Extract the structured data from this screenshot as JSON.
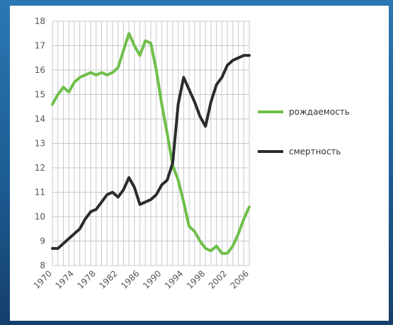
{
  "chart_data": {
    "type": "line",
    "title": "",
    "xlabel": "",
    "ylabel": "",
    "ylim": [
      8,
      18
    ],
    "xlim": [
      1970,
      2006
    ],
    "grid": true,
    "legend_position": "right",
    "y_ticks": [
      "8",
      "9",
      "10",
      "11",
      "12",
      "13",
      "14",
      "15",
      "16",
      "17",
      "18"
    ],
    "x_ticks": [
      "1970",
      "1974",
      "1978",
      "1982",
      "1986",
      "1990",
      "1994",
      "1998",
      "2002",
      "2006"
    ],
    "series": [
      {
        "name": "рождаемость",
        "color": "#6fbf4a",
        "x": [
          1970,
          1971,
          1972,
          1973,
          1974,
          1975,
          1976,
          1977,
          1978,
          1979,
          1980,
          1981,
          1982,
          1983,
          1984,
          1985,
          1986,
          1987,
          1988,
          1989,
          1990,
          1991,
          1992,
          1993,
          1994,
          1995,
          1996,
          1997,
          1998,
          1999,
          2000,
          2001,
          2002,
          2003,
          2004,
          2005,
          2006
        ],
        "y": [
          14.6,
          15.0,
          15.3,
          15.1,
          15.5,
          15.7,
          15.8,
          15.9,
          15.8,
          15.9,
          15.8,
          15.9,
          16.1,
          16.8,
          17.5,
          17.0,
          16.6,
          17.2,
          17.1,
          16.0,
          14.6,
          13.4,
          12.1,
          11.5,
          10.6,
          9.6,
          9.4,
          9.0,
          8.7,
          8.6,
          8.8,
          8.5,
          8.5,
          8.8,
          9.3,
          9.9,
          10.4
        ]
      },
      {
        "name": "смертность",
        "color": "#2b2b2b",
        "x": [
          1970,
          1971,
          1972,
          1973,
          1974,
          1975,
          1976,
          1977,
          1978,
          1979,
          1980,
          1981,
          1982,
          1983,
          1984,
          1985,
          1986,
          1987,
          1988,
          1989,
          1990,
          1991,
          1992,
          1993,
          1994,
          1995,
          1996,
          1997,
          1998,
          1999,
          2000,
          2001,
          2002,
          2003,
          2004,
          2005,
          2006
        ],
        "y": [
          8.7,
          8.7,
          8.9,
          9.1,
          9.3,
          9.5,
          9.9,
          10.2,
          10.3,
          10.6,
          10.9,
          11.0,
          10.8,
          11.1,
          11.6,
          11.2,
          10.5,
          10.6,
          10.7,
          10.9,
          11.3,
          11.5,
          12.2,
          14.6,
          15.7,
          15.2,
          14.7,
          14.1,
          13.7,
          14.7,
          15.4,
          15.7,
          16.2,
          16.4,
          16.5,
          16.6,
          16.6
        ]
      }
    ]
  }
}
